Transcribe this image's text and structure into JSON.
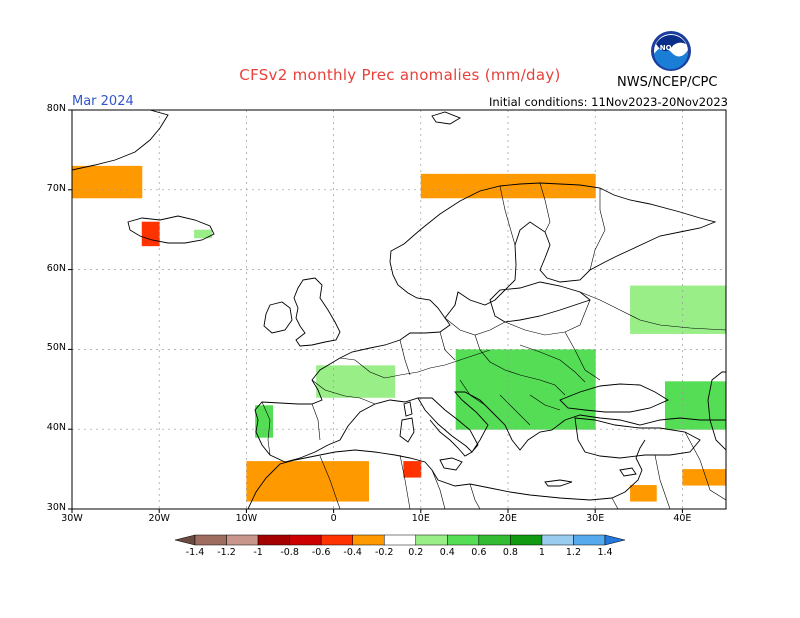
{
  "header": {
    "title": "CFSv2 monthly Prec anomalies (mm/day)",
    "month": "Mar 2024",
    "initial_conditions": "Initial conditions: 11Nov2023-20Nov2023",
    "agency": "NWS/NCEP/CPC",
    "logo_text": "NOAA",
    "title_color": "#e8403a",
    "month_color": "#3355cc"
  },
  "axes": {
    "lat_labels": [
      "80N",
      "70N",
      "60N",
      "50N",
      "40N",
      "30N"
    ],
    "lat_values": [
      80,
      70,
      60,
      50,
      40,
      30
    ],
    "lon_labels": [
      "30W",
      "20W",
      "10W",
      "0",
      "10E",
      "20E",
      "30E",
      "40E"
    ],
    "lon_values": [
      -30,
      -20,
      -10,
      0,
      10,
      20,
      30,
      40
    ],
    "lon_range": [
      -30,
      45
    ],
    "lat_range": [
      30,
      80
    ]
  },
  "colorbar": {
    "labels": [
      "-1.4",
      "-1.2",
      "-1",
      "-0.8",
      "-0.6",
      "-0.4",
      "-0.2",
      "0.2",
      "0.4",
      "0.6",
      "0.8",
      "1",
      "1.2",
      "1.4"
    ],
    "colors": [
      "#6b4a40",
      "#9e6d60",
      "#c8968a",
      "#a50000",
      "#cc0000",
      "#ff3300",
      "#ff9900",
      "#ffffff",
      "#99ee88",
      "#55dd55",
      "#33bb33",
      "#119911",
      "#99ccee",
      "#55aaee",
      "#2277dd"
    ]
  },
  "chart_data": {
    "type": "heatmap",
    "variable": "precipitation anomaly",
    "units": "mm/day",
    "period": "Mar 2024",
    "lon_range": [
      -30,
      45
    ],
    "lat_range": [
      30,
      80
    ],
    "regions": [
      {
        "name": "northern Norway coast",
        "lon": [
          10,
          30
        ],
        "lat": [
          69,
          71.5
        ],
        "value": -0.3
      },
      {
        "name": "western Iceland",
        "lon": [
          -22,
          -20
        ],
        "lat": [
          63,
          66
        ],
        "value": -0.6
      },
      {
        "name": "east Greenland coast",
        "lon": [
          -30,
          -22
        ],
        "lat": [
          69,
          73
        ],
        "value": -0.3
      },
      {
        "name": "east Iceland",
        "lon": [
          -16,
          -14
        ],
        "lat": [
          64,
          65
        ],
        "value": 0.3
      },
      {
        "name": "France",
        "lon": [
          -2,
          7
        ],
        "lat": [
          44,
          48
        ],
        "value": 0.3
      },
      {
        "name": "northwest Iberia",
        "lon": [
          -9,
          -7
        ],
        "lat": [
          39,
          43
        ],
        "value": 0.5
      },
      {
        "name": "Balkans and Danube",
        "lon": [
          14,
          30
        ],
        "lat": [
          40,
          50
        ],
        "value": 0.4
      },
      {
        "name": "western Russia",
        "lon": [
          34,
          45
        ],
        "lat": [
          52,
          58
        ],
        "value": 0.3
      },
      {
        "name": "Caucasus",
        "lon": [
          38,
          45
        ],
        "lat": [
          40,
          46
        ],
        "value": 0.5
      },
      {
        "name": "Morocco and Algeria",
        "lon": [
          -10,
          4
        ],
        "lat": [
          31,
          36
        ],
        "value": -0.3
      },
      {
        "name": "Tunisia",
        "lon": [
          8,
          10
        ],
        "lat": [
          34,
          36
        ],
        "value": -0.5
      },
      {
        "name": "Levant",
        "lon": [
          34,
          37
        ],
        "lat": [
          31,
          33
        ],
        "value": -0.4
      },
      {
        "name": "Iraq",
        "lon": [
          40,
          45
        ],
        "lat": [
          33,
          35
        ],
        "value": -0.3
      }
    ]
  }
}
